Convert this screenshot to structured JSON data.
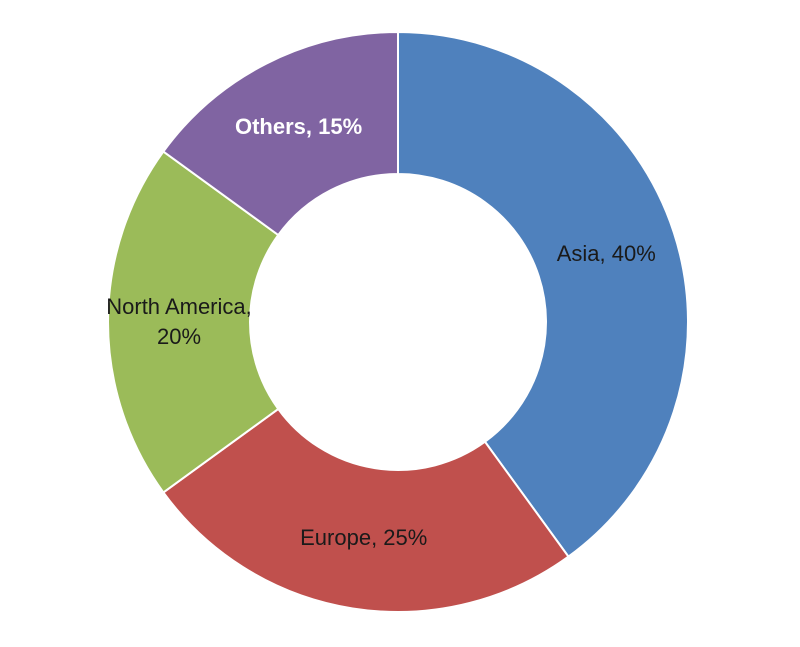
{
  "chart_data": {
    "type": "donut",
    "values": [
      40,
      25,
      20,
      15
    ],
    "value_labels": [
      "Asia, 40%",
      "Europe, 25%",
      "North America, 20%",
      "Others, 15%"
    ],
    "colors": [
      "#4f81bd",
      "#c0504d",
      "#9bbb59",
      "#8064a2"
    ],
    "label_colors": [
      "#1a1a1a",
      "#1a1a1a",
      "#1a1a1a",
      "#ffffff"
    ]
  }
}
